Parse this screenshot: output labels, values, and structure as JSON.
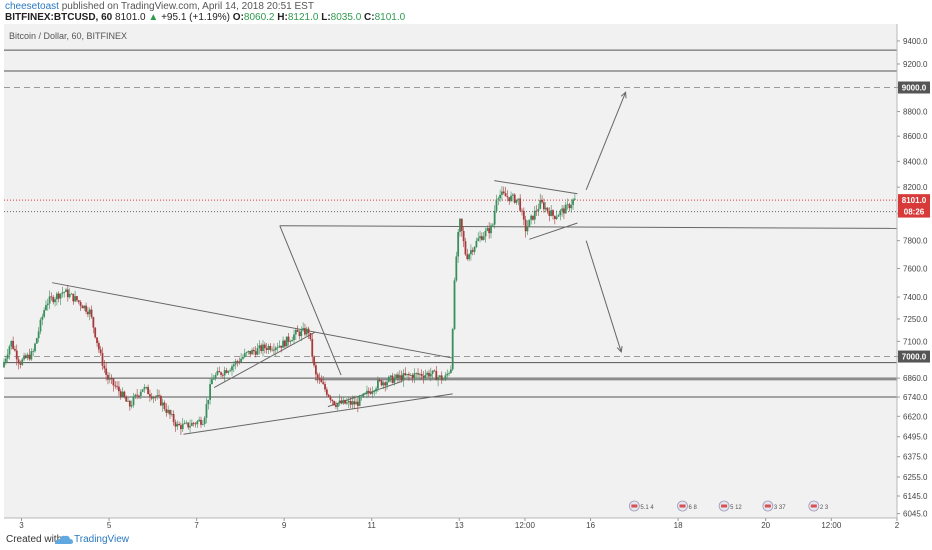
{
  "header": {
    "author": "cheesetoast",
    "published": "published on TradingView.com, April 14, 2018 20:51 EST",
    "symbol": "BITFINEX:BTCUSD, 60",
    "last": "8101.0",
    "change": "+95.1 (+1.19%)",
    "ohlc_o_label": "O:",
    "ohlc_o": "8060.2",
    "ohlc_h_label": "H:",
    "ohlc_h": "8121.0",
    "ohlc_l_label": "L:",
    "ohlc_l": "8035.0",
    "ohlc_c_label": "C:",
    "ohlc_c": "8101.0"
  },
  "chart_title": "Bitcoin / Dollar, 60, BITFINEX",
  "footer": {
    "created_with": "Created with",
    "brand": "TradingView"
  },
  "colors": {
    "up": "#3a8d5c",
    "down": "#a63a3a",
    "background": "#f1f1f1",
    "price_tag": "#d83a3a"
  },
  "chart_data": {
    "type": "candlestick",
    "title": "Bitcoin / Dollar, 60, BITFINEX",
    "y_scale": "log",
    "ylim": [
      6020,
      9550
    ],
    "y_ticks": [
      9400,
      9200,
      9000,
      8800,
      8600,
      8400,
      8200,
      8000,
      7800,
      7600,
      7400,
      7250,
      7100,
      7000,
      6860,
      6740,
      6620,
      6495,
      6375,
      6255,
      6145,
      6045
    ],
    "x_ticks": [
      {
        "label": "3",
        "day": 3
      },
      {
        "label": "5",
        "day": 5
      },
      {
        "label": "7",
        "day": 7
      },
      {
        "label": "9",
        "day": 9
      },
      {
        "label": "11",
        "day": 11
      },
      {
        "label": "13",
        "day": 13
      },
      {
        "label": "12:00",
        "day": 14.5
      },
      {
        "label": "16",
        "day": 16
      },
      {
        "label": "18",
        "day": 18
      },
      {
        "label": "20",
        "day": 20
      },
      {
        "label": "12:00",
        "day": 21.5
      },
      {
        "label": "2",
        "day": 23
      }
    ],
    "xlim": [
      2.6,
      23.0
    ],
    "price_tags": [
      {
        "label": "8101.0",
        "value": 8101,
        "color": "#d83a3a"
      },
      {
        "label": "08:26",
        "value": 8015,
        "color": "#d83a3a"
      },
      {
        "label": "9000.0",
        "value": 9000,
        "color": "#555555"
      },
      {
        "label": "7000.0",
        "value": 7000,
        "color": "#555555"
      }
    ],
    "horizontal_levels": [
      {
        "value": 9320,
        "style": "solid"
      },
      {
        "value": 9140,
        "style": "solid"
      },
      {
        "value": 9000,
        "style": "dashed"
      },
      {
        "value": 8101,
        "style": "dotted-red"
      },
      {
        "value": 8015,
        "style": "dotted"
      },
      {
        "value": 7000,
        "style": "dashed"
      },
      {
        "value": 6960,
        "style": "solid"
      },
      {
        "value": 6860,
        "style": "solid"
      },
      {
        "value": 6740,
        "style": "solid"
      }
    ],
    "price_path": [
      {
        "day": 2.6,
        "price": 6930
      },
      {
        "day": 2.8,
        "price": 7100
      },
      {
        "day": 3.0,
        "price": 6960
      },
      {
        "day": 3.3,
        "price": 7020
      },
      {
        "day": 3.6,
        "price": 7360
      },
      {
        "day": 4.0,
        "price": 7440
      },
      {
        "day": 4.3,
        "price": 7380
      },
      {
        "day": 4.6,
        "price": 7300
      },
      {
        "day": 4.85,
        "price": 7000
      },
      {
        "day": 5.0,
        "price": 6860
      },
      {
        "day": 5.3,
        "price": 6770
      },
      {
        "day": 5.5,
        "price": 6680
      },
      {
        "day": 5.8,
        "price": 6800
      },
      {
        "day": 6.2,
        "price": 6720
      },
      {
        "day": 6.6,
        "price": 6560
      },
      {
        "day": 6.8,
        "price": 6560
      },
      {
        "day": 7.2,
        "price": 6600
      },
      {
        "day": 7.4,
        "price": 6860
      },
      {
        "day": 7.8,
        "price": 6930
      },
      {
        "day": 8.2,
        "price": 7020
      },
      {
        "day": 8.6,
        "price": 7060
      },
      {
        "day": 9.0,
        "price": 7080
      },
      {
        "day": 9.3,
        "price": 7150
      },
      {
        "day": 9.6,
        "price": 7170
      },
      {
        "day": 9.75,
        "price": 6880
      },
      {
        "day": 10.2,
        "price": 6700
      },
      {
        "day": 10.7,
        "price": 6700
      },
      {
        "day": 11.2,
        "price": 6830
      },
      {
        "day": 11.6,
        "price": 6860
      },
      {
        "day": 12.0,
        "price": 6880
      },
      {
        "day": 12.4,
        "price": 6890
      },
      {
        "day": 12.7,
        "price": 6850
      },
      {
        "day": 12.85,
        "price": 6930
      },
      {
        "day": 12.95,
        "price": 7600
      },
      {
        "day": 13.05,
        "price": 7950
      },
      {
        "day": 13.2,
        "price": 7680
      },
      {
        "day": 13.5,
        "price": 7820
      },
      {
        "day": 13.8,
        "price": 7900
      },
      {
        "day": 13.9,
        "price": 8150
      },
      {
        "day": 14.2,
        "price": 8120
      },
      {
        "day": 14.4,
        "price": 8100
      },
      {
        "day": 14.55,
        "price": 7880
      },
      {
        "day": 14.9,
        "price": 8080
      },
      {
        "day": 15.2,
        "price": 7980
      },
      {
        "day": 15.5,
        "price": 8040
      },
      {
        "day": 15.65,
        "price": 8101
      }
    ],
    "annotation_lines": [
      {
        "from": [
          3.7,
          7500
        ],
        "to": [
          12.85,
          6990
        ]
      },
      {
        "from": [
          6.7,
          6510
        ],
        "to": [
          12.85,
          6760
        ]
      },
      {
        "from": [
          7.4,
          6800
        ],
        "to": [
          9.7,
          7160
        ]
      },
      {
        "from": [
          10.0,
          6680
        ],
        "to": [
          11.7,
          6840
        ]
      },
      {
        "from": [
          13.8,
          8250
        ],
        "to": [
          15.7,
          8150
        ]
      },
      {
        "from": [
          14.6,
          7810
        ],
        "to": [
          15.7,
          7930
        ]
      },
      {
        "from": [
          8.9,
          7910
        ],
        "to": [
          10.3,
          6880
        ]
      },
      {
        "from": [
          8.9,
          7910
        ],
        "to": [
          23.0,
          7890
        ]
      },
      {
        "from": [
          9.7,
          6850
        ],
        "to": [
          23.0,
          6850
        ]
      },
      {
        "from": [
          15.9,
          8180
        ],
        "to": [
          16.8,
          8960
        ],
        "arrow": true
      },
      {
        "from": [
          15.9,
          7800
        ],
        "to": [
          16.7,
          7030
        ],
        "arrow": true
      }
    ],
    "event_markers": [
      {
        "day": 17.0,
        "label": "5.1 4"
      },
      {
        "day": 18.1,
        "label": "6 8"
      },
      {
        "day": 19.05,
        "label": "5 12"
      },
      {
        "day": 20.05,
        "label": "3 37"
      },
      {
        "day": 21.1,
        "label": "2 3"
      }
    ]
  }
}
